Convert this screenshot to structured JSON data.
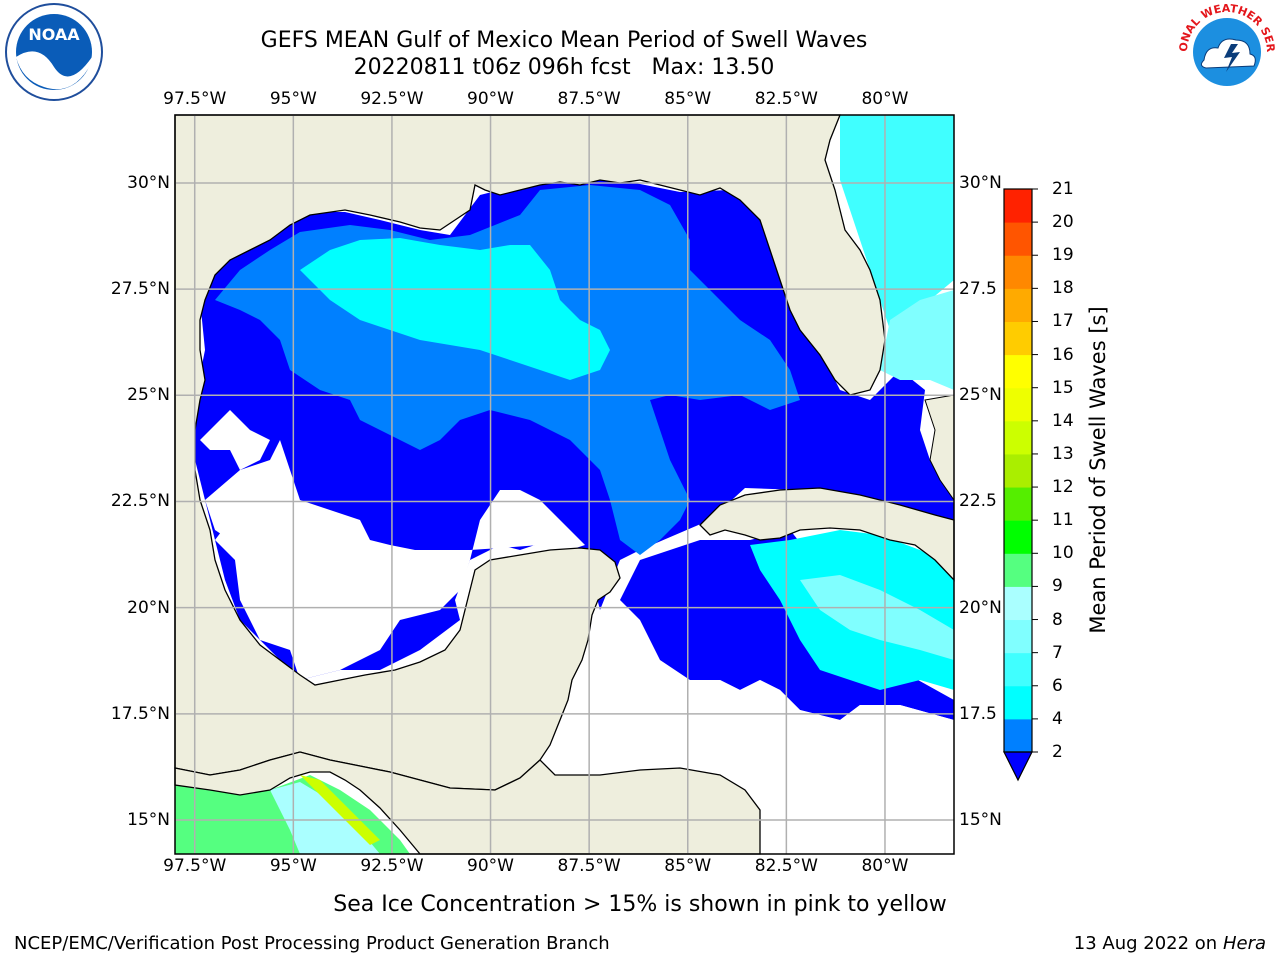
{
  "title": {
    "line1": "GEFS MEAN Gulf of Mexico Mean Period of Swell Waves",
    "line2": "20220811 t06z 096h fcst   Max: 13.50"
  },
  "map": {
    "lon_range": [
      -98,
      -78.25
    ],
    "lat_range": [
      14.2,
      31.6
    ],
    "lon_ticks": [
      "97.5°W",
      "95°W",
      "92.5°W",
      "90°W",
      "87.5°W",
      "85°W",
      "82.5°W",
      "80°W"
    ],
    "lat_ticks": [
      "30°N",
      "27.5°N",
      "25°N",
      "22.5°N",
      "20°N",
      "17.5°N",
      "15°N"
    ],
    "lat_ticks_right": [
      "30°N",
      "27.5",
      "25°N",
      "22.5",
      "20°N",
      "17.5",
      "15°N"
    ],
    "grid": true,
    "colors": {
      "land": "#eeeedd",
      "no_data": "#ffffff",
      "coast": "#000000",
      "grid": "#b0b0b0"
    }
  },
  "colorbar": {
    "label": "Mean Period of Swell Waves [s]",
    "ticks": [
      "2",
      "4",
      "6",
      "7",
      "8",
      "9",
      "10",
      "11",
      "12",
      "13",
      "14",
      "15",
      "16",
      "17",
      "18",
      "19",
      "20",
      "21"
    ],
    "colors": [
      "#0000ff",
      "#0080ff",
      "#00ffff",
      "#40ffff",
      "#80ffff",
      "#aaffff",
      "#55ff80",
      "#00ff00",
      "#55ee00",
      "#aaee00",
      "#ccff00",
      "#eeff00",
      "#ffff00",
      "#ffcc00",
      "#ffaa00",
      "#ff8800",
      "#ff5500",
      "#ff2200",
      "#ff0000"
    ],
    "extend": "min"
  },
  "note": "Sea Ice Concentration > 15% is shown in pink to yellow",
  "credit": "NCEP/EMC/Verification Post Processing Product Generation Branch",
  "timestamp": {
    "date": "13 Aug 2022 on",
    "host": "Hera"
  },
  "logos": {
    "left": "NOAA",
    "right": "NATIONAL WEATHER SERVICE"
  }
}
